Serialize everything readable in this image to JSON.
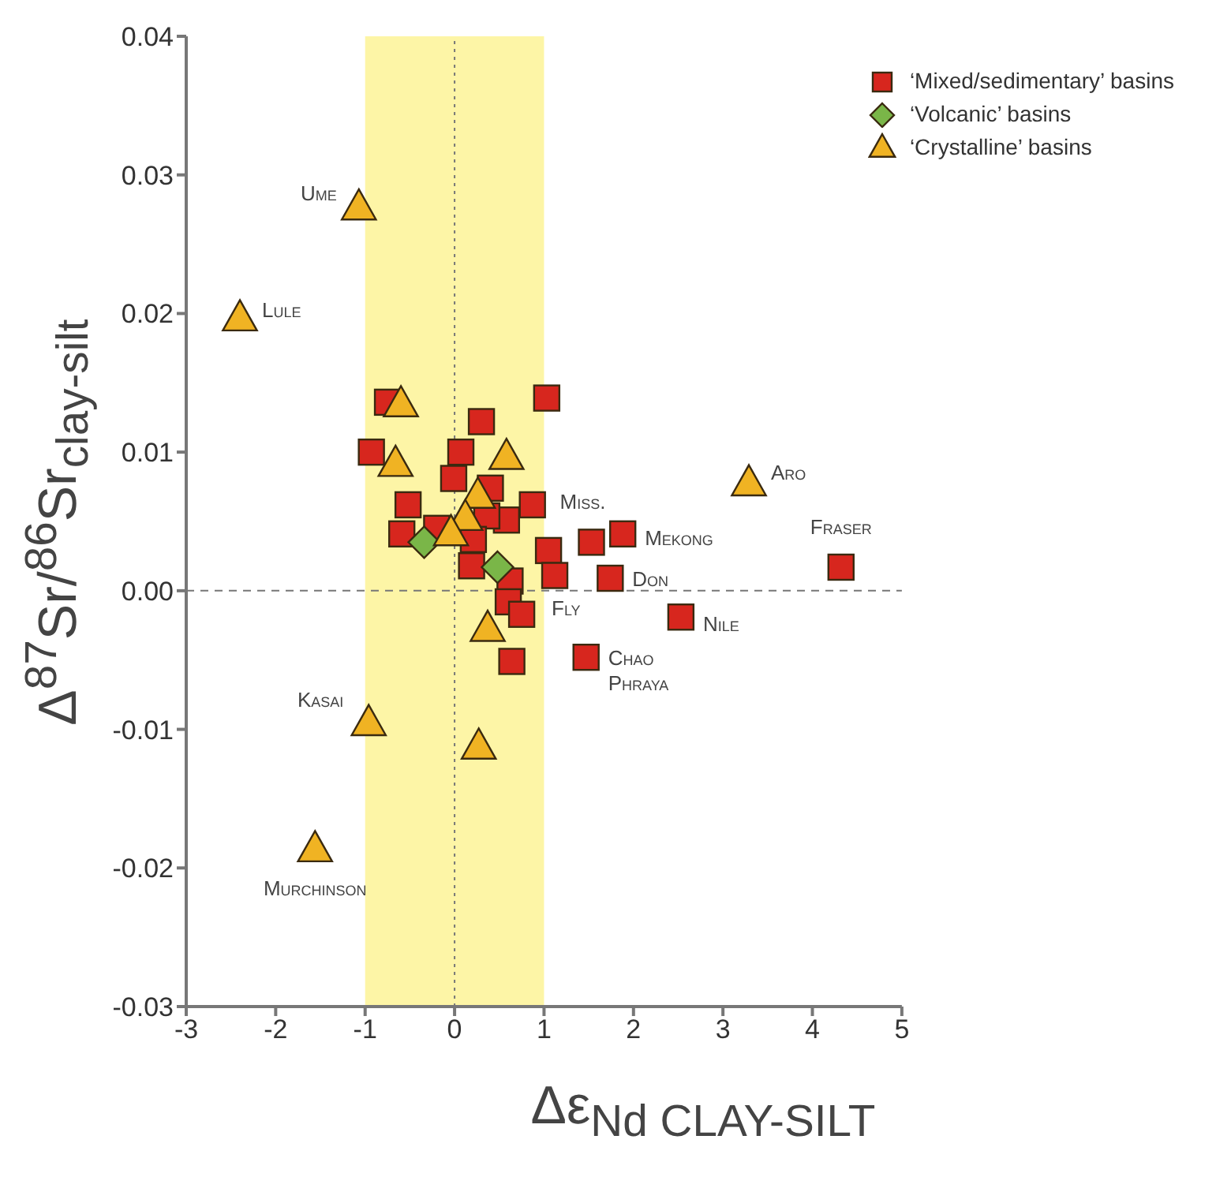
{
  "chart_data": {
    "type": "scatter",
    "xlabel": "Δε$_{Nd CLAY-SILT}$",
    "ylabel": "Δ$^{87}$Sr/$^{86}$Sr$_{clay-silt}$",
    "xlim": [
      -3,
      5
    ],
    "xticks": [
      -3,
      -2,
      -1,
      0,
      1,
      2,
      3,
      4,
      5
    ],
    "ylim": [
      -0.03,
      0.04
    ],
    "yticks": [
      -0.03,
      -0.02,
      -0.01,
      {
        "value": 0,
        "label": "0.00"
      },
      0.01,
      0.02,
      0.03,
      0.04
    ],
    "legend": "top right",
    "series": [
      {
        "name": "‘Mixed/sedimentary’ basins",
        "color": "#d7261e",
        "marker": "square",
        "x": [
          1.03,
          -0.75,
          0.3,
          -0.93,
          0.07,
          -0.01,
          0.4,
          0.87,
          -0.52,
          0.58,
          -0.59,
          -0.2,
          0.36,
          0.21,
          0.19,
          1.05,
          1.12,
          0.62,
          0.6,
          0.75,
          0.64,
          1.53,
          1.47,
          1.88,
          1.74,
          2.53,
          4.32
        ],
        "values": [
          0.0139,
          0.0136,
          0.0122,
          0.01,
          0.01,
          0.0081,
          0.0074,
          0.0062,
          0.0062,
          0.0051,
          0.0041,
          0.0045,
          0.0054,
          0.0037,
          0.0018,
          0.0029,
          0.0011,
          0.0007,
          -0.0008,
          -0.0017,
          -0.0051,
          0.0035,
          -0.0048,
          0.0041,
          0.0009,
          -0.0019,
          0.0017
        ]
      },
      {
        "name": "‘Volcanic’ basins",
        "color": "#7ab648",
        "marker": "diamond",
        "x": [
          -0.34,
          0.48
        ],
        "values": [
          0.0035,
          0.0017
        ]
      },
      {
        "name": "‘Crystalline’ basins",
        "color": "#f0b323",
        "marker": "triangle",
        "x": [
          -0.6,
          -0.66,
          0.58,
          0.26,
          0.12,
          -0.04,
          0.37,
          -1.07,
          -2.4,
          -0.96,
          0.27,
          -1.56,
          3.29
        ],
        "values": [
          0.0134,
          0.0091,
          0.0096,
          0.0068,
          0.0052,
          0.0041,
          -0.0028,
          0.0276,
          0.0196,
          -0.0096,
          -0.0113,
          -0.0187,
          0.0077
        ]
      }
    ],
    "ref_lines": [
      {
        "axis": "x",
        "value": 0,
        "line_style": "dotted"
      },
      {
        "axis": "y",
        "value": 0,
        "line_style": "dashed"
      }
    ],
    "bands": [
      {
        "axis": "x",
        "from": -1,
        "to": 1,
        "color": "#fdf5a6"
      }
    ],
    "annotations": [
      {
        "text": "Ume",
        "x": -1.07,
        "y": 0.0276
      },
      {
        "text": "Lule",
        "x": -2.4,
        "y": 0.0196
      },
      {
        "text": "Kasai",
        "x": -0.96,
        "y": -0.0096
      },
      {
        "text": "Murchinson",
        "x": -1.56,
        "y": -0.0187
      },
      {
        "text": "Aro",
        "x": 3.29,
        "y": 0.0077
      },
      {
        "text": "Fraser",
        "x": 4.32,
        "y": 0.0017
      },
      {
        "text": "Miss.",
        "x": 1.53,
        "y": 0.0035
      },
      {
        "text": "Mekong",
        "x": 1.88,
        "y": 0.0041
      },
      {
        "text": "Don",
        "x": 1.74,
        "y": 0.0009
      },
      {
        "text": "Fly",
        "x": 1.12,
        "y": 0.0011
      },
      {
        "text": "Nile",
        "x": 2.53,
        "y": -0.0019
      },
      {
        "text": "Chao Phraya",
        "x": 1.47,
        "y": -0.0048
      }
    ]
  }
}
